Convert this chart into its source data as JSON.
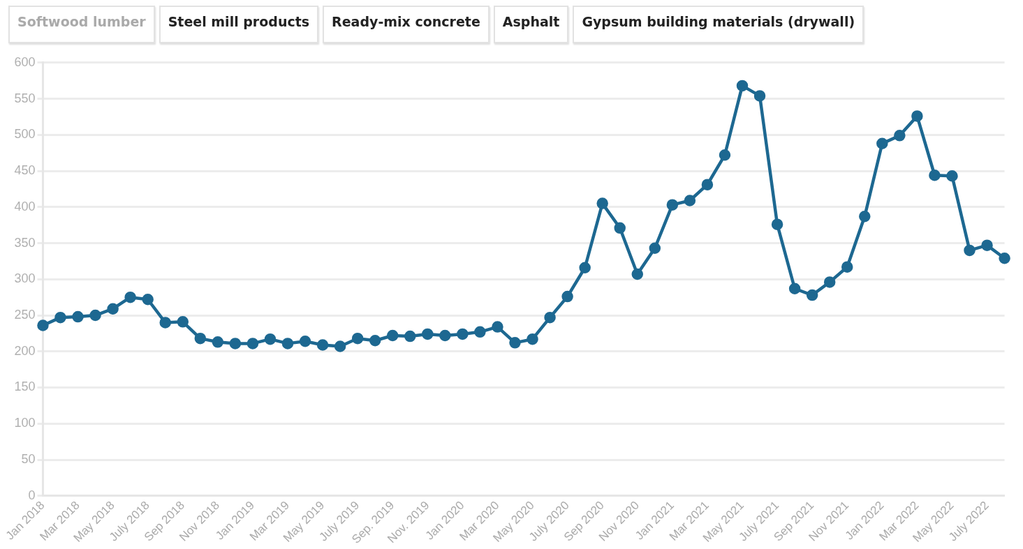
{
  "chart_data": {
    "type": "line",
    "annotations": [
      "Softwood lumber",
      "Steel mill products",
      "Ready-mix concrete",
      "Asphalt",
      "Gypsum building materials (drywall)"
    ],
    "categories": [
      "Jan 2018",
      null,
      "Mar 2018",
      null,
      "May 2018",
      null,
      "July 2018",
      null,
      "Sep 2018",
      null,
      "Nov 2018",
      null,
      "Jan 2019",
      null,
      "Mar 2019",
      null,
      "May 2019",
      null,
      "July 2019",
      null,
      "Sep. 2019",
      null,
      "Nov. 2019",
      null,
      "Jan 2020",
      null,
      "Mar 2020",
      null,
      "May 2020",
      null,
      "July 2020",
      null,
      "Sep 2020",
      null,
      "Nov 2020",
      null,
      "Jan 2021",
      null,
      "Mar 2021",
      null,
      "May 2021",
      null,
      "July 2021",
      null,
      "Sep 2021",
      null,
      "Nov 2021",
      null,
      "Jan 2022",
      null,
      "Mar 2022",
      null,
      "May 2022",
      null,
      "July 2022",
      null
    ],
    "series": [
      {
        "color": "#1d6891",
        "values": [
          236,
          247,
          248,
          250,
          259,
          275,
          272,
          240,
          241,
          218,
          213,
          211,
          211,
          217,
          211,
          214,
          209,
          207,
          218,
          215,
          222,
          221,
          224,
          222,
          224,
          227,
          234,
          212,
          217,
          247,
          276,
          316,
          405,
          371,
          307,
          343,
          403,
          409,
          431,
          472,
          568,
          554,
          376,
          287,
          278,
          296,
          317,
          387,
          488,
          499,
          526,
          444,
          443,
          340,
          347,
          329
        ]
      }
    ],
    "ylim": [
      0,
      600
    ],
    "yticks": [
      0,
      50,
      100,
      150,
      200,
      250,
      300,
      350,
      400,
      450,
      500,
      550,
      600
    ],
    "grid": "y",
    "marker": "circle",
    "line_style": "solid",
    "legend": false
  }
}
